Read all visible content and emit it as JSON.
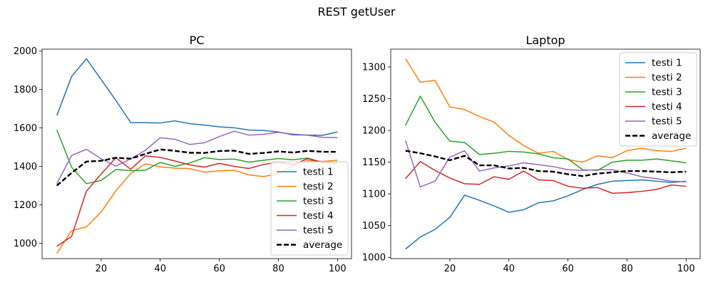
{
  "figure": {
    "title": "REST getUser"
  },
  "chart_data": [
    {
      "type": "line",
      "title": "PC",
      "xlabel": "",
      "ylabel": "",
      "xlim": [
        0,
        104.75
      ],
      "ylim": [
        920,
        2010
      ],
      "xticks": [
        20,
        40,
        60,
        80,
        100
      ],
      "yticks": [
        1000,
        1200,
        1400,
        1600,
        1800,
        2000
      ],
      "legend_position": "lower-right",
      "x": [
        5,
        10,
        15,
        20,
        25,
        30,
        35,
        40,
        45,
        50,
        55,
        60,
        65,
        70,
        75,
        80,
        85,
        90,
        95,
        100
      ],
      "series": [
        {
          "name": "testi 1",
          "color": "#1f77b4",
          "style": "solid",
          "values": [
            1665,
            1868,
            1960,
            1852,
            1743,
            1628,
            1627,
            1626,
            1637,
            1622,
            1615,
            1606,
            1601,
            1589,
            1587,
            1579,
            1564,
            1563,
            1562,
            1579
          ]
        },
        {
          "name": "testi 2",
          "color": "#ff7f0e",
          "style": "solid",
          "values": [
            947,
            1066,
            1085,
            1163,
            1273,
            1363,
            1413,
            1398,
            1391,
            1388,
            1370,
            1377,
            1380,
            1356,
            1347,
            1363,
            1402,
            1430,
            1426,
            1432
          ]
        },
        {
          "name": "testi 3",
          "color": "#2ca02c",
          "style": "solid",
          "values": [
            1590,
            1396,
            1310,
            1327,
            1384,
            1378,
            1380,
            1421,
            1400,
            1418,
            1445,
            1436,
            1438,
            1422,
            1432,
            1441,
            1435,
            1443,
            1420,
            1418
          ]
        },
        {
          "name": "testi 4",
          "color": "#d62728",
          "style": "solid",
          "values": [
            984,
            1036,
            1271,
            1360,
            1445,
            1385,
            1455,
            1447,
            1428,
            1408,
            1396,
            1416,
            1400,
            1389,
            1410,
            1422,
            1410,
            1440,
            1420,
            1423
          ]
        },
        {
          "name": "testi 5",
          "color": "#9467bd",
          "style": "solid",
          "values": [
            1310,
            1457,
            1489,
            1440,
            1401,
            1440,
            1484,
            1549,
            1541,
            1514,
            1523,
            1555,
            1583,
            1563,
            1567,
            1577,
            1568,
            1562,
            1551,
            1550
          ]
        },
        {
          "name": "average",
          "color": "#000000",
          "style": "dashed",
          "values": [
            1300,
            1366,
            1425,
            1429,
            1445,
            1440,
            1465,
            1488,
            1481,
            1471,
            1470,
            1480,
            1482,
            1465,
            1470,
            1478,
            1472,
            1481,
            1476,
            1476
          ]
        }
      ]
    },
    {
      "type": "line",
      "title": "Laptop",
      "xlabel": "",
      "ylabel": "",
      "xlim": [
        0,
        104.75
      ],
      "ylim": [
        998,
        1328
      ],
      "xticks": [
        20,
        40,
        60,
        80,
        100
      ],
      "yticks": [
        1000,
        1050,
        1100,
        1150,
        1200,
        1250,
        1300
      ],
      "legend_position": "upper-right",
      "x": [
        5,
        10,
        15,
        20,
        25,
        30,
        35,
        40,
        45,
        50,
        55,
        60,
        65,
        70,
        75,
        80,
        85,
        90,
        95,
        100
      ],
      "series": [
        {
          "name": "testi 1",
          "color": "#1f77b4",
          "style": "solid",
          "values": [
            1013,
            1032,
            1044,
            1063,
            1098,
            1090,
            1081,
            1071,
            1075,
            1086,
            1089,
            1097,
            1107,
            1115,
            1120,
            1121,
            1122,
            1120,
            1118,
            1120
          ]
        },
        {
          "name": "testi 2",
          "color": "#ff7f0e",
          "style": "solid",
          "values": [
            1313,
            1276,
            1279,
            1237,
            1233,
            1222,
            1213,
            1192,
            1176,
            1164,
            1167,
            1154,
            1150,
            1160,
            1157,
            1168,
            1172,
            1168,
            1167,
            1172
          ]
        },
        {
          "name": "testi 3",
          "color": "#2ca02c",
          "style": "solid",
          "values": [
            1208,
            1254,
            1213,
            1183,
            1181,
            1162,
            1164,
            1167,
            1166,
            1163,
            1157,
            1155,
            1138,
            1137,
            1150,
            1153,
            1153,
            1155,
            1152,
            1149
          ]
        },
        {
          "name": "testi 4",
          "color": "#d62728",
          "style": "solid",
          "values": [
            1124,
            1151,
            1137,
            1125,
            1116,
            1115,
            1127,
            1123,
            1136,
            1122,
            1121,
            1112,
            1109,
            1110,
            1101,
            1102,
            1104,
            1107,
            1114,
            1112
          ]
        },
        {
          "name": "testi 5",
          "color": "#9467bd",
          "style": "solid",
          "values": [
            1184,
            1111,
            1120,
            1158,
            1168,
            1136,
            1141,
            1144,
            1149,
            1146,
            1143,
            1138,
            1137,
            1138,
            1138,
            1133,
            1127,
            1124,
            1120,
            1119
          ]
        },
        {
          "name": "average",
          "color": "#000000",
          "style": "dashed",
          "values": [
            1168,
            1164,
            1159,
            1153,
            1160,
            1145,
            1145,
            1140,
            1141,
            1136,
            1135,
            1131,
            1128,
            1132,
            1134,
            1136,
            1136,
            1135,
            1134,
            1135
          ]
        }
      ]
    }
  ]
}
